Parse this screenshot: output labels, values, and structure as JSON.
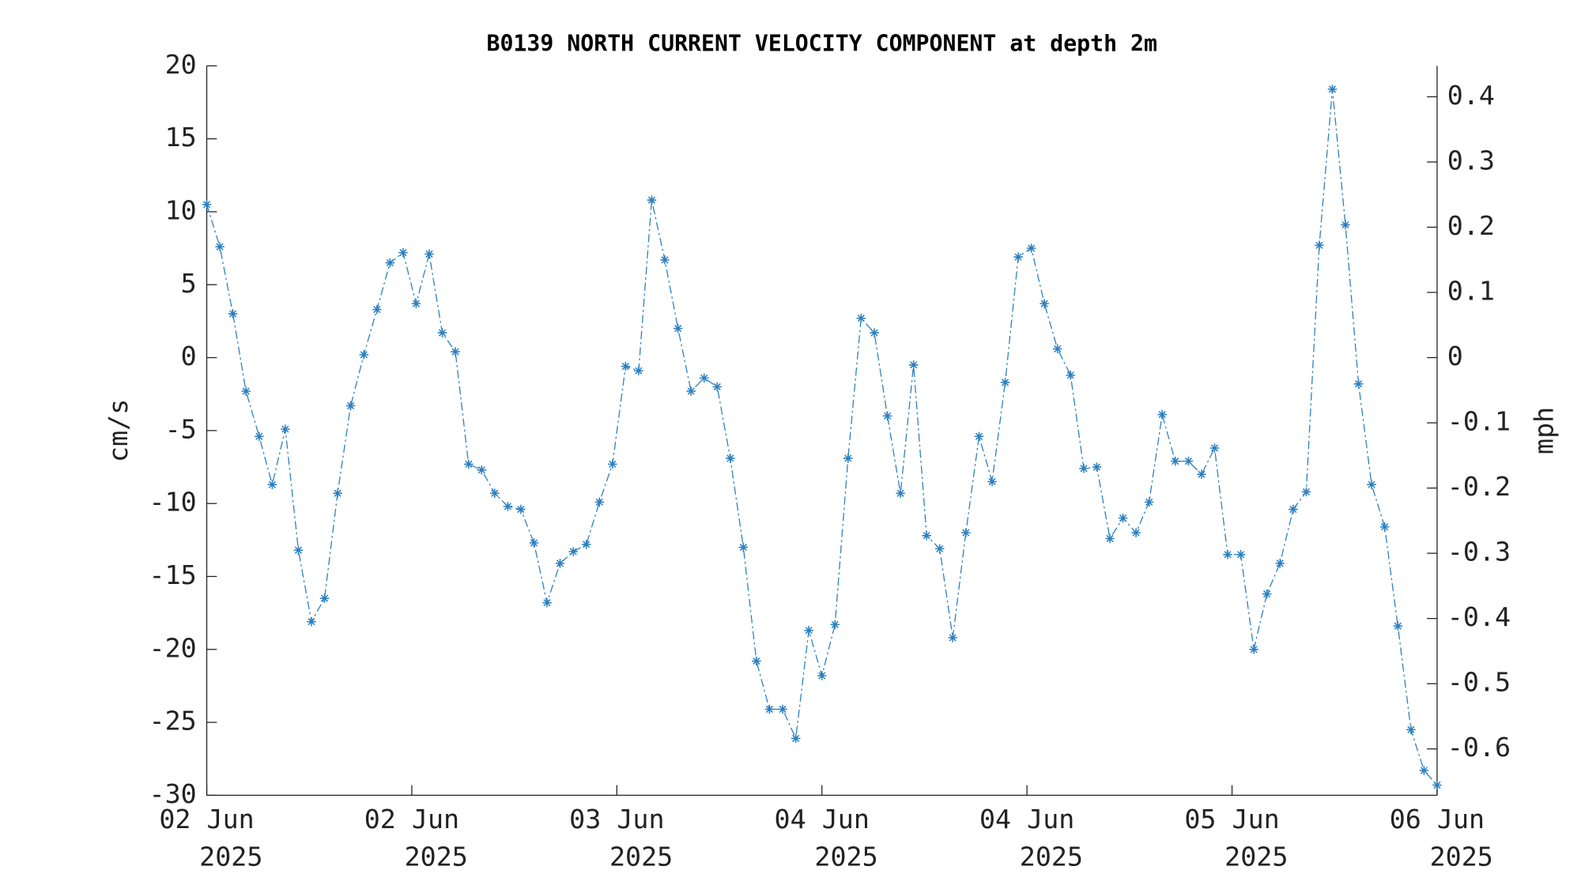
{
  "chart_data": {
    "type": "line",
    "title": "B0139 NORTH CURRENT VELOCITY COMPONENT at depth 2m",
    "ylabel": "cm/s",
    "y2label": "mph",
    "x": [
      0,
      1.02,
      2.04,
      3.06,
      4.09,
      5.11,
      6.13,
      7.15,
      8.17,
      9.19,
      10.21,
      11.23,
      12.26,
      13.28,
      14.3,
      15.32,
      16.34,
      17.36,
      18.38,
      19.4,
      20.43,
      21.45,
      22.47,
      23.49,
      24.51,
      25.53,
      26.55,
      27.57,
      28.6,
      29.62,
      30.64,
      31.66,
      32.68,
      33.7,
      34.72,
      35.74,
      36.77,
      37.79,
      38.81,
      39.83,
      40.85,
      41.87,
      42.89,
      43.91,
      44.94,
      45.96,
      46.98,
      48,
      49.02,
      50.04,
      51.06,
      52.09,
      53.11,
      54.13,
      55.15,
      56.17,
      57.19,
      58.21,
      59.23,
      60.26,
      61.28,
      62.3,
      63.32,
      64.34,
      65.36,
      66.38,
      67.4,
      68.43,
      69.45,
      70.47,
      71.49,
      72.51,
      73.53,
      74.55,
      75.57,
      76.6,
      77.62,
      78.64,
      79.66,
      80.68,
      81.7,
      82.72,
      83.74,
      84.77,
      85.79,
      86.81,
      87.83,
      88.85,
      89.87,
      90.89,
      91.91,
      92.94,
      93.96,
      94.98,
      96
    ],
    "series": [
      {
        "color": "#2a7fc0",
        "values": [
          10.5,
          7.6,
          3.0,
          -2.3,
          -5.4,
          -8.7,
          -4.9,
          -13.2,
          -18.1,
          -16.5,
          -9.3,
          -3.3,
          0.2,
          3.3,
          6.5,
          7.2,
          3.7,
          7.1,
          1.7,
          0.4,
          -7.3,
          -7.7,
          -9.3,
          -10.2,
          -10.4,
          -12.7,
          -16.8,
          -14.1,
          -13.3,
          -12.8,
          -9.9,
          -7.3,
          -0.6,
          -0.9,
          10.8,
          6.7,
          2.0,
          -2.3,
          -1.4,
          -2.0,
          -6.9,
          -13.0,
          -20.8,
          -24.1,
          -24.1,
          -26.1,
          -18.7,
          -21.8,
          -18.3,
          -6.9,
          2.7,
          1.7,
          -4.0,
          -9.3,
          -0.5,
          -12.2,
          -13.1,
          -19.2,
          -12.0,
          -5.4,
          -8.5,
          -1.7,
          6.9,
          7.5,
          3.7,
          0.6,
          -1.2,
          -7.6,
          -7.5,
          -12.4,
          -11.0,
          -12.0,
          -9.9,
          -3.9,
          -7.1,
          -7.1,
          -8.0,
          -6.2,
          -13.5,
          -13.5,
          -20.0,
          -16.2,
          -14.1,
          -10.4,
          -9.2,
          7.7,
          18.4,
          9.1,
          -1.8,
          -8.7,
          -11.6,
          -18.4,
          -25.5,
          -28.3,
          -29.3
        ]
      }
    ],
    "xlim": [
      0,
      96
    ],
    "xticks": [
      {
        "value": 0,
        "label": "02 Jun",
        "year": "2025"
      },
      {
        "value": 16,
        "label": "02 Jun",
        "year": "2025"
      },
      {
        "value": 32,
        "label": "03 Jun",
        "year": "2025"
      },
      {
        "value": 48,
        "label": "04 Jun",
        "year": "2025"
      },
      {
        "value": 64,
        "label": "04 Jun",
        "year": "2025"
      },
      {
        "value": 80,
        "label": "05 Jun",
        "year": "2025"
      },
      {
        "value": 96,
        "label": "06 Jun",
        "year": "2025"
      }
    ],
    "ylim": [
      -30,
      20
    ],
    "yticks": [
      -30,
      -25,
      -20,
      -15,
      -10,
      -5,
      0,
      5,
      10,
      15,
      20
    ],
    "y2lim": [
      -0.6711,
      0.4474
    ],
    "y2ticks": [
      -0.6,
      -0.5,
      -0.4,
      -0.3,
      -0.2,
      -0.1,
      0,
      0.1,
      0.2,
      0.3,
      0.4
    ],
    "grid": false,
    "marker": "asterisk"
  }
}
